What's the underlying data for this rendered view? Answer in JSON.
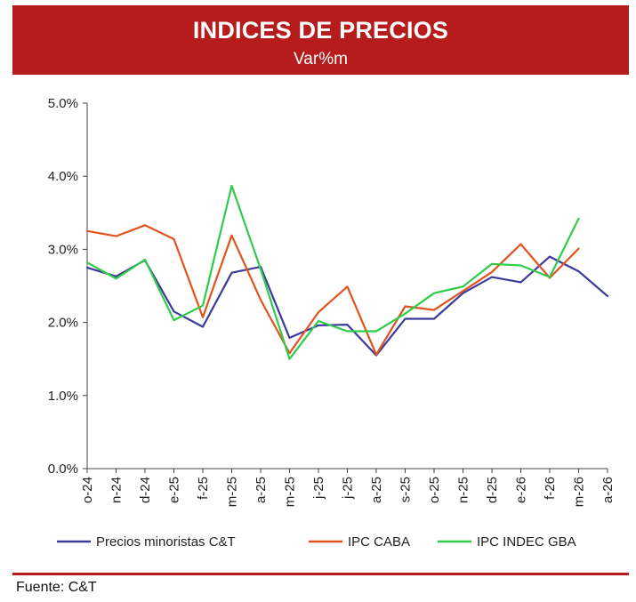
{
  "header": {
    "title": "INDICES DE PRECIOS",
    "subtitle": "Var%m"
  },
  "footer": {
    "source": "Fuente: C&T"
  },
  "colors": {
    "banner": "#b71c1c"
  },
  "chart_data": {
    "type": "line",
    "title": "INDICES DE PRECIOS",
    "subtitle": "Var%m",
    "categories": [
      "o-24",
      "n-24",
      "d-24",
      "e-25",
      "f-25",
      "m-25",
      "a-25",
      "m-25",
      "j-25",
      "j-25",
      "a-25",
      "s-25",
      "o-25",
      "n-25",
      "d-25",
      "e-26",
      "f-26",
      "m-26",
      "a-26"
    ],
    "ylim": [
      0,
      5
    ],
    "yticks": [
      "0.0%",
      "1.0%",
      "2.0%",
      "3.0%",
      "4.0%",
      "5.0%"
    ],
    "grid": false,
    "legend_position": "bottom",
    "series": [
      {
        "name": "Precios minoristas C&T",
        "color": "#3c3a9c",
        "values": [
          2.75,
          2.63,
          2.85,
          2.15,
          1.94,
          2.68,
          2.76,
          1.79,
          1.96,
          1.97,
          1.55,
          2.05,
          2.05,
          2.4,
          2.62,
          2.55,
          2.9,
          2.7,
          2.36
        ]
      },
      {
        "name": "IPC CABA",
        "color": "#e0531f",
        "values": [
          3.25,
          3.18,
          3.33,
          3.14,
          2.07,
          3.19,
          2.31,
          1.58,
          2.14,
          2.49,
          1.56,
          2.22,
          2.17,
          2.43,
          2.69,
          3.07,
          2.61,
          3.01,
          null
        ]
      },
      {
        "name": "IPC INDEC GBA",
        "color": "#2ecc4a",
        "values": [
          2.82,
          2.6,
          2.86,
          2.03,
          2.23,
          3.87,
          2.73,
          1.5,
          2.02,
          1.88,
          1.88,
          2.12,
          2.4,
          2.49,
          2.8,
          2.78,
          2.62,
          3.42,
          null
        ]
      }
    ]
  }
}
